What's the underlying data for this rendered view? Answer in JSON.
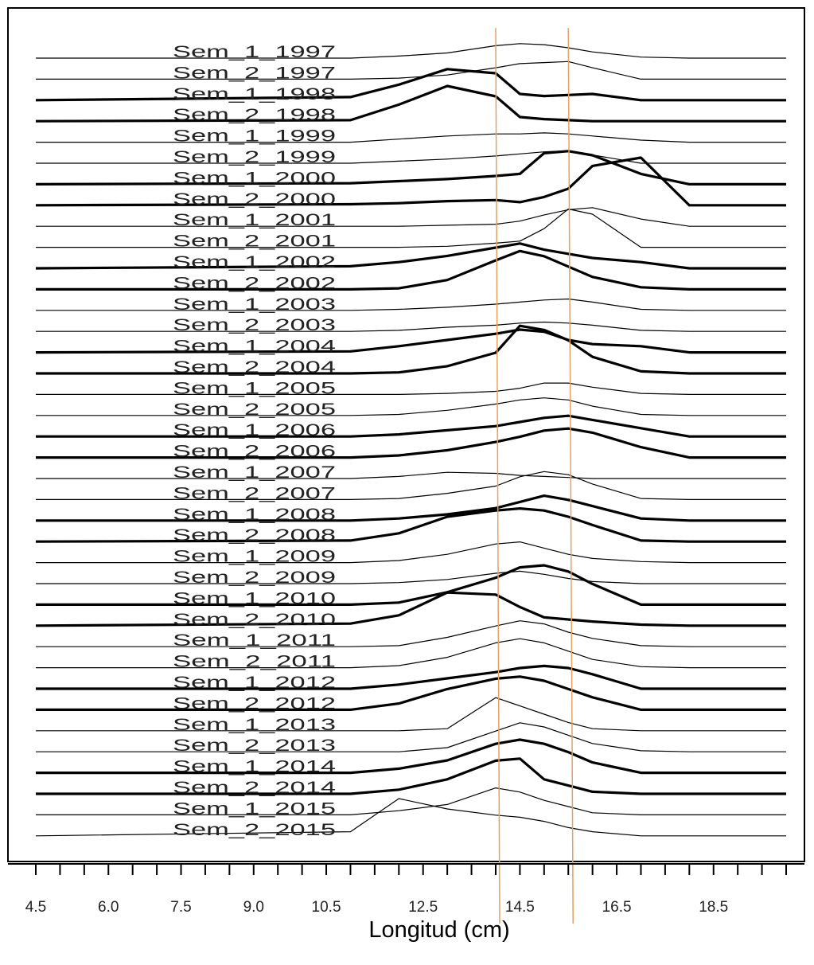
{
  "chart_data": {
    "type": "line",
    "chart_style": "ridgeline (stacked length-frequency distributions)",
    "xlabel": "Longitud (cm)",
    "ylabel": "",
    "title": "",
    "xlim": [
      4.5,
      20.0
    ],
    "x_tick_labels": [
      "4.5",
      "6.0",
      "7.5",
      "9.0",
      "10.5",
      "12.5",
      "14.5",
      "16.5",
      "18.5"
    ],
    "x_tick_label_values": [
      4.5,
      6.0,
      7.5,
      9.0,
      10.5,
      12.5,
      14.5,
      16.5,
      18.5
    ],
    "minor_tick_step": 0.5,
    "reference_lines_x": [
      14.0,
      15.5
    ],
    "reference_line_color": "#E8A060",
    "line_color": "#000000",
    "grid": false,
    "legend": "none",
    "x": [
      4.5,
      11.0,
      12.0,
      13.0,
      14.0,
      14.5,
      15.0,
      15.5,
      16.0,
      17.0,
      18.0,
      20.0
    ],
    "series": [
      {
        "name": "Sem_1_1997",
        "bold": false,
        "values": [
          0.0,
          0.0,
          0.1,
          0.25,
          0.6,
          0.7,
          0.65,
          0.5,
          0.3,
          0.05,
          0.0,
          0.0
        ]
      },
      {
        "name": "Sem_2_1997",
        "bold": false,
        "values": [
          0.0,
          0.0,
          0.05,
          0.2,
          0.55,
          0.75,
          0.8,
          0.85,
          0.55,
          0.0,
          0.0,
          0.0
        ]
      },
      {
        "name": "Sem_1_1998",
        "bold": true,
        "values": [
          0.0,
          0.15,
          0.75,
          1.5,
          1.3,
          0.3,
          0.2,
          0.25,
          0.3,
          0.0,
          0.0,
          0.0
        ]
      },
      {
        "name": "Sem_2_1998",
        "bold": true,
        "values": [
          0.0,
          0.05,
          0.8,
          1.7,
          1.2,
          0.2,
          0.1,
          0.05,
          0.0,
          0.0,
          0.0,
          0.0
        ]
      },
      {
        "name": "Sem_1_1999",
        "bold": false,
        "values": [
          0.0,
          0.0,
          0.15,
          0.3,
          0.4,
          0.4,
          0.45,
          0.4,
          0.3,
          0.1,
          0.0,
          0.0
        ]
      },
      {
        "name": "Sem_2_1999",
        "bold": false,
        "values": [
          0.0,
          0.0,
          0.1,
          0.2,
          0.35,
          0.45,
          0.55,
          0.6,
          0.4,
          0.0,
          0.0,
          0.0
        ]
      },
      {
        "name": "Sem_1_2000",
        "bold": true,
        "values": [
          0.0,
          0.05,
          0.15,
          0.25,
          0.4,
          0.5,
          1.5,
          1.6,
          1.4,
          0.5,
          0.0,
          0.0
        ]
      },
      {
        "name": "Sem_2_2000",
        "bold": true,
        "values": [
          0.0,
          0.05,
          0.1,
          0.2,
          0.25,
          0.15,
          0.4,
          0.8,
          1.9,
          2.3,
          0.0,
          0.0
        ]
      },
      {
        "name": "Sem_1_2001",
        "bold": false,
        "values": [
          0.0,
          0.0,
          0.0,
          0.05,
          0.1,
          0.25,
          0.55,
          0.8,
          0.9,
          0.35,
          0.0,
          0.0
        ]
      },
      {
        "name": "Sem_2_2001",
        "bold": false,
        "values": [
          0.0,
          0.0,
          0.0,
          0.05,
          0.2,
          0.3,
          0.9,
          1.85,
          1.6,
          0.0,
          0.0,
          0.0
        ]
      },
      {
        "name": "Sem_1_2002",
        "bold": true,
        "values": [
          0.0,
          0.1,
          0.3,
          0.6,
          1.0,
          1.2,
          0.9,
          0.7,
          0.5,
          0.3,
          0.0,
          0.0
        ]
      },
      {
        "name": "Sem_2_2002",
        "bold": true,
        "values": [
          0.0,
          0.0,
          0.05,
          0.45,
          1.4,
          1.85,
          1.6,
          1.1,
          0.6,
          0.1,
          0.0,
          0.0
        ]
      },
      {
        "name": "Sem_1_2003",
        "bold": false,
        "values": [
          0.0,
          0.0,
          0.05,
          0.15,
          0.3,
          0.4,
          0.5,
          0.55,
          0.4,
          0.05,
          0.0,
          0.0
        ]
      },
      {
        "name": "Sem_2_2003",
        "bold": false,
        "values": [
          0.0,
          0.0,
          0.05,
          0.2,
          0.3,
          0.4,
          0.45,
          0.4,
          0.3,
          0.05,
          0.0,
          0.0
        ]
      },
      {
        "name": "Sem_1_2004",
        "bold": true,
        "values": [
          0.0,
          0.05,
          0.3,
          0.6,
          0.9,
          1.1,
          1.0,
          0.6,
          0.4,
          0.3,
          0.0,
          0.0
        ]
      },
      {
        "name": "Sem_2_2004",
        "bold": true,
        "values": [
          0.0,
          0.0,
          0.05,
          0.35,
          1.0,
          2.3,
          2.1,
          1.6,
          0.8,
          0.1,
          0.0,
          0.0
        ]
      },
      {
        "name": "Sem_1_2005",
        "bold": false,
        "values": [
          0.0,
          0.0,
          0.0,
          0.05,
          0.15,
          0.3,
          0.55,
          0.55,
          0.35,
          0.05,
          0.0,
          0.0
        ]
      },
      {
        "name": "Sem_2_2005",
        "bold": false,
        "values": [
          0.0,
          0.0,
          0.05,
          0.25,
          0.55,
          0.75,
          0.85,
          0.75,
          0.45,
          0.05,
          0.0,
          0.0
        ]
      },
      {
        "name": "Sem_1_2006",
        "bold": true,
        "values": [
          0.0,
          0.0,
          0.1,
          0.3,
          0.5,
          0.7,
          0.9,
          1.0,
          0.8,
          0.4,
          0.0,
          0.0
        ]
      },
      {
        "name": "Sem_2_2006",
        "bold": true,
        "values": [
          0.0,
          0.0,
          0.1,
          0.35,
          0.75,
          1.0,
          1.3,
          1.4,
          1.2,
          0.5,
          0.0,
          0.0
        ]
      },
      {
        "name": "Sem_1_2007",
        "bold": false,
        "values": [
          0.0,
          0.0,
          0.1,
          0.3,
          0.25,
          0.15,
          0.1,
          0.05,
          0.0,
          0.0,
          0.0,
          0.0
        ]
      },
      {
        "name": "Sem_2_2007",
        "bold": false,
        "values": [
          0.0,
          0.0,
          0.05,
          0.3,
          0.65,
          1.1,
          1.35,
          1.2,
          0.75,
          0.05,
          0.0,
          0.0
        ]
      },
      {
        "name": "Sem_1_2008",
        "bold": true,
        "values": [
          0.0,
          0.0,
          0.1,
          0.3,
          0.6,
          0.9,
          1.2,
          1.0,
          0.7,
          0.1,
          0.0,
          0.0
        ]
      },
      {
        "name": "Sem_2_2008",
        "bold": true,
        "values": [
          0.0,
          0.05,
          0.4,
          1.2,
          1.5,
          1.6,
          1.5,
          1.2,
          0.8,
          0.05,
          0.0,
          0.0
        ]
      },
      {
        "name": "Sem_1_2009",
        "bold": false,
        "values": [
          0.0,
          0.0,
          0.1,
          0.4,
          0.9,
          1.0,
          0.7,
          0.4,
          0.2,
          0.05,
          0.0,
          0.0
        ]
      },
      {
        "name": "Sem_2_2009",
        "bold": false,
        "values": [
          0.0,
          0.0,
          0.05,
          0.2,
          0.5,
          0.6,
          0.45,
          0.25,
          0.1,
          0.0,
          0.0,
          0.0
        ]
      },
      {
        "name": "Sem_1_2010",
        "bold": true,
        "values": [
          0.0,
          0.0,
          0.1,
          0.6,
          1.3,
          1.8,
          1.9,
          1.6,
          1.0,
          0.0,
          0.0,
          0.0
        ]
      },
      {
        "name": "Sem_2_2010",
        "bold": true,
        "values": [
          0.0,
          0.1,
          0.5,
          1.6,
          1.5,
          0.9,
          0.4,
          0.3,
          0.2,
          0.05,
          0.0,
          0.0
        ]
      },
      {
        "name": "Sem_1_2011",
        "bold": false,
        "values": [
          0.0,
          0.0,
          0.05,
          0.45,
          1.0,
          1.25,
          1.1,
          0.7,
          0.4,
          0.05,
          0.0,
          0.0
        ]
      },
      {
        "name": "Sem_2_2011",
        "bold": false,
        "values": [
          0.0,
          0.0,
          0.1,
          0.5,
          1.2,
          1.4,
          1.2,
          0.8,
          0.4,
          0.05,
          0.0,
          0.0
        ]
      },
      {
        "name": "Sem_1_2012",
        "bold": true,
        "values": [
          0.0,
          0.0,
          0.2,
          0.5,
          0.8,
          1.0,
          1.1,
          1.0,
          0.7,
          0.0,
          0.0,
          0.0
        ]
      },
      {
        "name": "Sem_2_2012",
        "bold": true,
        "values": [
          0.0,
          0.0,
          0.3,
          1.0,
          1.5,
          1.6,
          1.4,
          1.0,
          0.6,
          0.0,
          0.0,
          0.0
        ]
      },
      {
        "name": "Sem_1_2013",
        "bold": false,
        "values": [
          0.0,
          0.0,
          0.0,
          0.1,
          1.6,
          1.2,
          0.8,
          0.4,
          0.1,
          0.0,
          0.0,
          0.0
        ]
      },
      {
        "name": "Sem_2_2013",
        "bold": false,
        "values": [
          0.0,
          0.0,
          0.0,
          0.2,
          1.0,
          1.4,
          1.2,
          0.8,
          0.4,
          0.05,
          0.0,
          0.0
        ]
      },
      {
        "name": "Sem_1_2014",
        "bold": true,
        "values": [
          0.0,
          0.0,
          0.2,
          0.6,
          1.4,
          1.6,
          1.4,
          1.0,
          0.5,
          0.0,
          0.0,
          0.0
        ]
      },
      {
        "name": "Sem_2_2014",
        "bold": true,
        "values": [
          0.0,
          0.0,
          0.2,
          0.7,
          1.6,
          1.7,
          0.7,
          0.4,
          0.1,
          0.0,
          0.0,
          0.0
        ]
      },
      {
        "name": "Sem_1_2015",
        "bold": false,
        "values": [
          0.0,
          0.0,
          0.2,
          0.5,
          1.3,
          1.1,
          0.7,
          0.4,
          0.1,
          0.0,
          0.0,
          0.0
        ]
      },
      {
        "name": "Sem_2_2015",
        "bold": false,
        "values": [
          0.0,
          0.2,
          1.8,
          1.3,
          1.0,
          0.9,
          0.7,
          0.4,
          0.2,
          0.0,
          0.0,
          0.0
        ]
      }
    ]
  }
}
